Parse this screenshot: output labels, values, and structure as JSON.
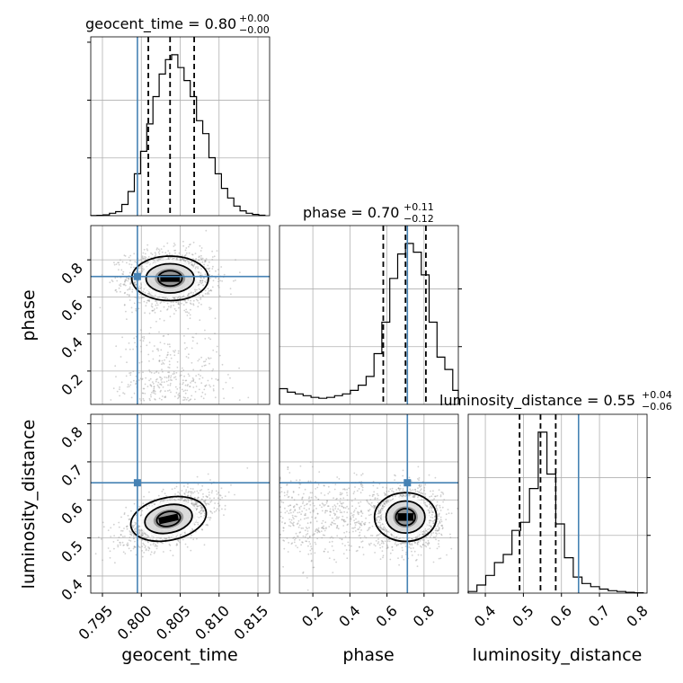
{
  "colors": {
    "truth": "#4682b4",
    "hist": "#000000",
    "grid": "#b0b0b0",
    "points": "#9a9a9a"
  },
  "chart_data": {
    "type": "corner",
    "parameters": [
      "geocent_time",
      "phase",
      "luminosity_distance"
    ],
    "ranges": {
      "geocent_time": [
        0.7935,
        0.8165
      ],
      "phase": [
        0.02,
        0.985
      ],
      "luminosity_distance": [
        0.355,
        0.825
      ]
    },
    "truth": {
      "geocent_time": 0.7995,
      "phase": 0.71,
      "luminosity_distance": 0.645
    },
    "titles": [
      {
        "param": "geocent_time",
        "text": "geocent_time = 0.80",
        "plus": "+0.00",
        "minus": "−0.00"
      },
      {
        "param": "phase",
        "text": "phase = 0.70",
        "plus": "+0.11",
        "minus": "−0.12"
      },
      {
        "param": "luminosity_distance",
        "text": "luminosity_distance = 0.55",
        "plus": "+0.04",
        "minus": "−0.06"
      }
    ],
    "ticks": {
      "geocent_time": [
        "0.795",
        "0.800",
        "0.805",
        "0.810",
        "0.815"
      ],
      "phase": [
        "0.2",
        "0.4",
        "0.6",
        "0.8"
      ],
      "luminosity_distance": [
        "0.4",
        "0.5",
        "0.6",
        "0.7",
        "0.8"
      ]
    },
    "axis_labels": {
      "x": [
        "geocent_time",
        "phase",
        "luminosity_distance"
      ],
      "y": [
        "phase",
        "luminosity_distance"
      ]
    },
    "marginals": {
      "geocent_time": {
        "quantiles": [
          0.8009,
          0.8037,
          0.8068
        ],
        "edges": [
          0.7935,
          0.7943,
          0.7951,
          0.7959,
          0.7967,
          0.7975,
          0.7983,
          0.7991,
          0.7999,
          0.8007,
          0.8015,
          0.8023,
          0.8031,
          0.8039,
          0.8047,
          0.8055,
          0.8063,
          0.8071,
          0.8079,
          0.8087,
          0.8095,
          0.8103,
          0.8111,
          0.8119,
          0.8127,
          0.8135,
          0.8143,
          0.8151,
          0.8159
        ],
        "counts": [
          0.1,
          0.2,
          0.5,
          1.5,
          2.5,
          7,
          15,
          26,
          40,
          57,
          74,
          88,
          97,
          100,
          92,
          84,
          74,
          59,
          51,
          36,
          26,
          17,
          11,
          6,
          3,
          1.5,
          0.8,
          0.3
        ]
      },
      "phase": {
        "quantiles": [
          0.58,
          0.7,
          0.81
        ],
        "edges": [
          0.02,
          0.0625,
          0.105,
          0.1475,
          0.19,
          0.2325,
          0.275,
          0.3175,
          0.36,
          0.4025,
          0.445,
          0.4875,
          0.53,
          0.5725,
          0.615,
          0.6575,
          0.7,
          0.7425,
          0.785,
          0.8275,
          0.87,
          0.9125,
          0.955,
          0.985
        ],
        "counts": [
          9,
          7,
          6,
          5,
          4,
          3.5,
          4,
          5,
          6,
          8,
          11,
          16,
          29,
          47,
          72,
          86,
          92,
          87,
          74,
          47,
          27,
          20,
          8
        ]
      },
      "luminosity_distance": {
        "quantiles": [
          0.49,
          0.545,
          0.585
        ],
        "edges": [
          0.355,
          0.378,
          0.401,
          0.424,
          0.447,
          0.47,
          0.493,
          0.516,
          0.539,
          0.562,
          0.585,
          0.608,
          0.631,
          0.654,
          0.677,
          0.7,
          0.723,
          0.746,
          0.769,
          0.792,
          0.815
        ],
        "counts": [
          1,
          5,
          11,
          19,
          24,
          39,
          44,
          65,
          100,
          74,
          43,
          22,
          10,
          6,
          4,
          2.5,
          1.5,
          1,
          0.5,
          0.2
        ]
      }
    }
  }
}
